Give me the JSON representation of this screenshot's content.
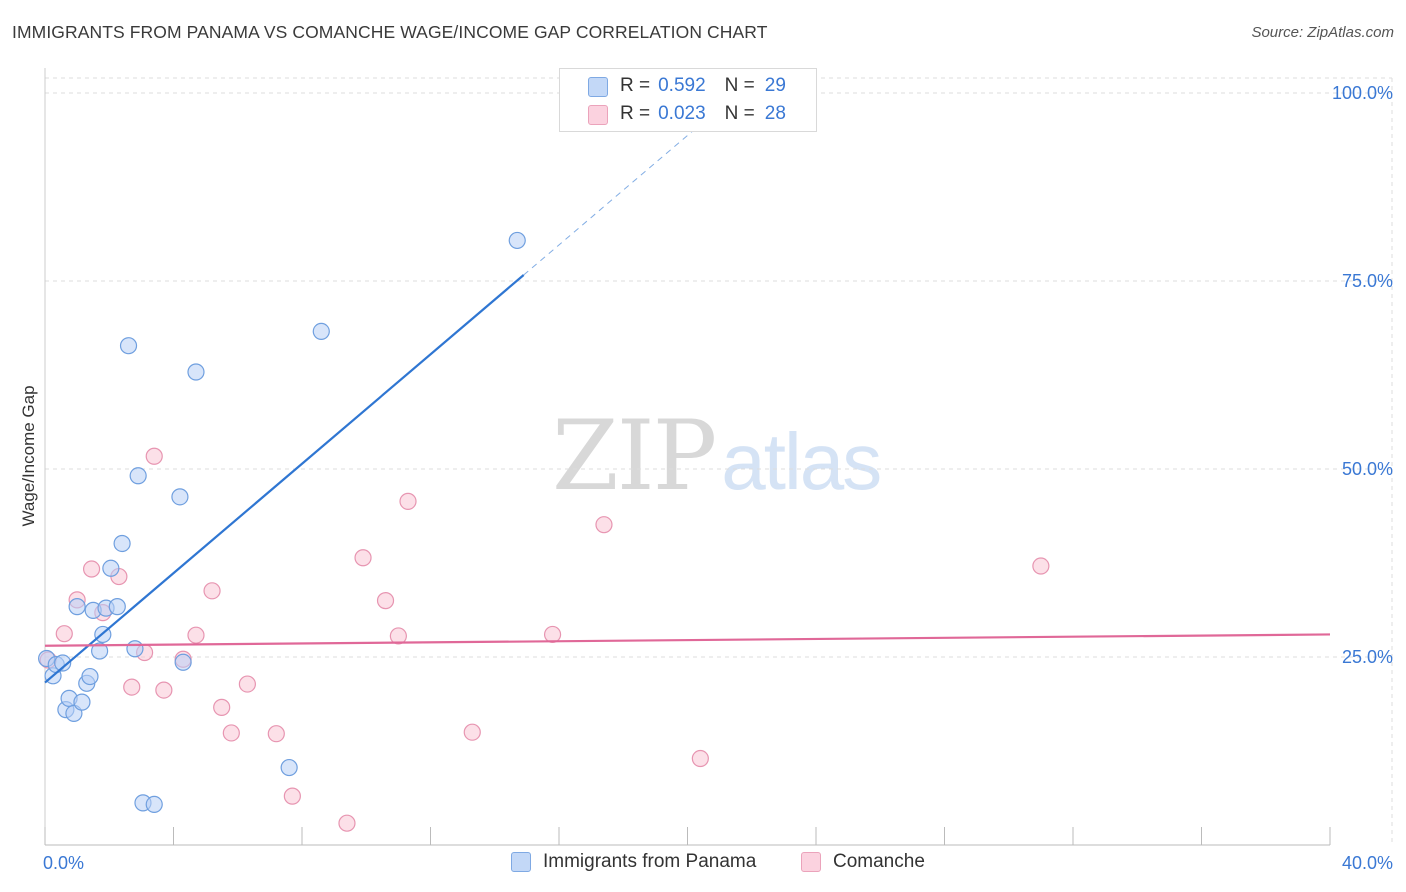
{
  "title": "IMMIGRANTS FROM PANAMA VS COMANCHE WAGE/INCOME GAP CORRELATION CHART",
  "source": "Source: ZipAtlas.com",
  "watermark": {
    "zip": "ZIP",
    "atlas": "atlas"
  },
  "legend": {
    "r_label": "R =",
    "n_label": "N =",
    "series": [
      {
        "r": "0.592",
        "n": "29"
      },
      {
        "r": "0.023",
        "n": "28"
      }
    ]
  },
  "colors": {
    "blue_fill": "#b8d0f5",
    "blue_stroke": "#6f9fdf",
    "blue_line": "#2f76d2",
    "pink_fill": "#f9c6d6",
    "pink_stroke": "#e795b1",
    "pink_line": "#e06898",
    "axis_text": "#3a78d4",
    "grid": "#dddddd"
  },
  "chart_data": {
    "type": "scatter",
    "title": "IMMIGRANTS FROM PANAMA VS COMANCHE WAGE/INCOME GAP CORRELATION CHART",
    "xlabel": "",
    "ylabel": "Wage/Income Gap",
    "xlim": [
      0,
      40
    ],
    "ylim": [
      0,
      102
    ],
    "x_tick_labels": [
      "0.0%",
      "40.0%"
    ],
    "y_ticks": [
      25,
      50,
      75,
      100
    ],
    "y_tick_labels": [
      "25.0%",
      "50.0%",
      "75.0%",
      "100.0%"
    ],
    "series": [
      {
        "name": "Immigrants from Panama",
        "points": [
          {
            "x": 0.05,
            "y": 24.8
          },
          {
            "x": 0.25,
            "y": 22.5
          },
          {
            "x": 0.35,
            "y": 24.0
          },
          {
            "x": 0.55,
            "y": 24.2
          },
          {
            "x": 0.65,
            "y": 18.0
          },
          {
            "x": 0.75,
            "y": 19.5
          },
          {
            "x": 0.9,
            "y": 17.5
          },
          {
            "x": 1.0,
            "y": 31.7
          },
          {
            "x": 1.15,
            "y": 19.0
          },
          {
            "x": 1.3,
            "y": 21.5
          },
          {
            "x": 1.4,
            "y": 22.4
          },
          {
            "x": 1.5,
            "y": 31.2
          },
          {
            "x": 1.7,
            "y": 25.8
          },
          {
            "x": 1.8,
            "y": 28.0
          },
          {
            "x": 1.9,
            "y": 31.5
          },
          {
            "x": 2.05,
            "y": 36.8
          },
          {
            "x": 2.25,
            "y": 31.7
          },
          {
            "x": 2.4,
            "y": 40.1
          },
          {
            "x": 2.6,
            "y": 66.4
          },
          {
            "x": 2.8,
            "y": 26.1
          },
          {
            "x": 2.9,
            "y": 49.1
          },
          {
            "x": 3.05,
            "y": 5.6
          },
          {
            "x": 3.4,
            "y": 5.4
          },
          {
            "x": 4.2,
            "y": 46.3
          },
          {
            "x": 4.3,
            "y": 24.3
          },
          {
            "x": 4.7,
            "y": 62.9
          },
          {
            "x": 7.6,
            "y": 10.3
          },
          {
            "x": 8.6,
            "y": 68.3
          },
          {
            "x": 14.7,
            "y": 80.4
          }
        ],
        "trend": {
          "x0": 0,
          "y0": 21.6,
          "x1_solid": 14.9,
          "y1_solid": 75.8,
          "x1_dash": 21.0,
          "y1_dash": 98.0
        }
      },
      {
        "name": "Comanche",
        "points": [
          {
            "x": 0.1,
            "y": 24.6
          },
          {
            "x": 0.6,
            "y": 28.1
          },
          {
            "x": 1.0,
            "y": 32.6
          },
          {
            "x": 1.45,
            "y": 36.7
          },
          {
            "x": 1.8,
            "y": 30.9
          },
          {
            "x": 2.3,
            "y": 35.7
          },
          {
            "x": 2.7,
            "y": 21.0
          },
          {
            "x": 3.1,
            "y": 25.6
          },
          {
            "x": 3.4,
            "y": 51.7
          },
          {
            "x": 3.7,
            "y": 20.6
          },
          {
            "x": 4.3,
            "y": 24.7
          },
          {
            "x": 4.7,
            "y": 27.9
          },
          {
            "x": 5.2,
            "y": 33.8
          },
          {
            "x": 5.5,
            "y": 18.3
          },
          {
            "x": 5.8,
            "y": 14.9
          },
          {
            "x": 6.3,
            "y": 21.4
          },
          {
            "x": 7.2,
            "y": 14.8
          },
          {
            "x": 7.7,
            "y": 6.5
          },
          {
            "x": 9.4,
            "y": 2.9
          },
          {
            "x": 9.9,
            "y": 38.2
          },
          {
            "x": 10.6,
            "y": 32.5
          },
          {
            "x": 11.0,
            "y": 27.8
          },
          {
            "x": 11.3,
            "y": 45.7
          },
          {
            "x": 13.3,
            "y": 15.0
          },
          {
            "x": 15.8,
            "y": 28.0
          },
          {
            "x": 17.4,
            "y": 42.6
          },
          {
            "x": 20.4,
            "y": 11.5
          },
          {
            "x": 31.0,
            "y": 37.1
          }
        ],
        "trend": {
          "x0": 0,
          "y0": 26.5,
          "x1": 40,
          "y1": 28.0
        }
      }
    ]
  }
}
